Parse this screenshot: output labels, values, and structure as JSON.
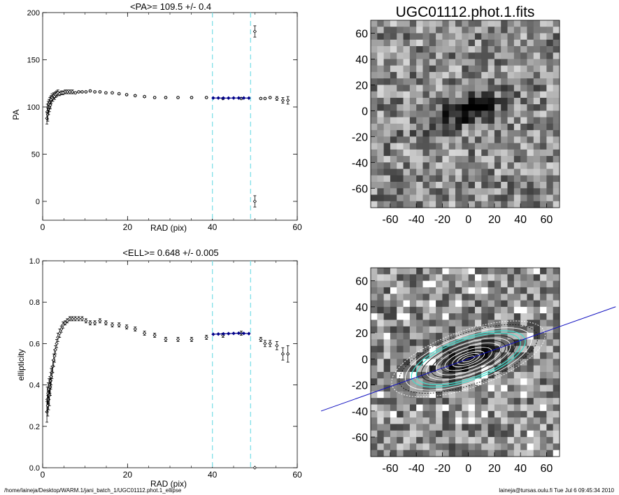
{
  "chart_data": [
    {
      "id": "pa",
      "type": "scatter",
      "title": "<PA>= 109.5 +/-   0.4",
      "xlabel": "RAD (pix)",
      "ylabel": "PA",
      "xlim": [
        0,
        60
      ],
      "ylim": [
        -20,
        200
      ],
      "xticks": [
        0,
        20,
        40,
        60
      ],
      "yticks": [
        0,
        50,
        100,
        150,
        200
      ],
      "vlines": [
        40,
        49
      ],
      "series": [
        {
          "role": "measured",
          "color": "#000000",
          "x": [
            1.0,
            1.1,
            1.2,
            1.3,
            1.4,
            1.5,
            1.6,
            1.7,
            1.8,
            1.9,
            2.0,
            2.2,
            2.4,
            2.6,
            2.8,
            3.0,
            3.3,
            3.6,
            4.0,
            4.4,
            4.8,
            5.3,
            5.8,
            6.4,
            7.0,
            7.7,
            8.5,
            9.3,
            10.2,
            11.2,
            12.3,
            13.5,
            14.9,
            16.4,
            18.0,
            19.8,
            21.8,
            24.0,
            26.4,
            29.0,
            31.9,
            35.1,
            38.6,
            42.5,
            46.8,
            51.4,
            52.4,
            53.6,
            55.2,
            56.6,
            57.8
          ],
          "y": [
            88,
            95,
            92,
            100,
            98,
            103,
            100,
            105,
            102,
            107,
            108,
            110,
            109,
            112,
            111,
            113,
            114,
            115,
            114,
            115,
            115,
            116,
            116,
            116,
            116,
            115,
            116,
            116,
            116,
            117,
            116,
            116,
            115,
            115,
            114,
            113,
            112,
            111,
            110,
            110,
            110,
            110,
            110,
            109,
            109,
            109,
            109,
            110,
            109,
            107,
            107
          ],
          "err": [
            6,
            8,
            7,
            6,
            6,
            5,
            5,
            5,
            4,
            4,
            4,
            4,
            3,
            3,
            3,
            3,
            3,
            3,
            2,
            2,
            2,
            2,
            2,
            2,
            2,
            1,
            1,
            1,
            1,
            1,
            1,
            1,
            1,
            1,
            1,
            1,
            1,
            1,
            1,
            1,
            1,
            1,
            1,
            1,
            1,
            1,
            1,
            1,
            2,
            3,
            4
          ]
        },
        {
          "role": "fit-range",
          "color": "#00008b",
          "x": [
            40.2,
            41.4,
            42.6,
            43.8,
            45.0,
            46.2,
            47.4,
            48.6
          ],
          "y": [
            109.5,
            109.5,
            109.4,
            109.4,
            109.5,
            109.5,
            109.5,
            109.4
          ]
        },
        {
          "role": "outliers",
          "color": "#000000",
          "x": [
            50.0,
            50.0
          ],
          "y": [
            180,
            0
          ],
          "err": [
            6,
            6
          ]
        }
      ]
    },
    {
      "id": "ell",
      "type": "scatter",
      "title": "<ELL>= 0.648 +/-  0.005",
      "xlabel": "RAD (pix)",
      "ylabel": "ellipticity",
      "xlim": [
        0,
        60
      ],
      "ylim": [
        0.0,
        1.0
      ],
      "xticks": [
        0,
        20,
        40,
        60
      ],
      "yticks": [
        0.0,
        0.2,
        0.4,
        0.6,
        0.8,
        1.0
      ],
      "ytick_labels": [
        "0.0",
        "0.2",
        "0.4",
        "0.6",
        "0.8",
        "1.0"
      ],
      "vlines": [
        40,
        49
      ],
      "series": [
        {
          "role": "measured",
          "color": "#000000",
          "x": [
            1.0,
            1.1,
            1.2,
            1.3,
            1.4,
            1.5,
            1.6,
            1.7,
            1.8,
            1.9,
            2.0,
            2.2,
            2.4,
            2.6,
            2.8,
            3.0,
            3.3,
            3.6,
            4.0,
            4.4,
            4.8,
            5.3,
            5.8,
            6.4,
            7.0,
            7.7,
            8.5,
            9.3,
            10.2,
            11.2,
            12.3,
            13.5,
            14.9,
            16.4,
            18.0,
            19.8,
            21.8,
            24.0,
            26.4,
            29.0,
            31.9,
            35.1,
            38.6,
            42.5,
            46.8,
            51.4,
            52.4,
            53.6,
            55.2,
            56.6,
            57.8
          ],
          "y": [
            0.27,
            0.33,
            0.3,
            0.36,
            0.33,
            0.38,
            0.35,
            0.4,
            0.39,
            0.42,
            0.44,
            0.46,
            0.49,
            0.52,
            0.54,
            0.57,
            0.6,
            0.63,
            0.65,
            0.67,
            0.69,
            0.7,
            0.71,
            0.72,
            0.72,
            0.72,
            0.72,
            0.72,
            0.71,
            0.7,
            0.7,
            0.71,
            0.7,
            0.69,
            0.69,
            0.68,
            0.67,
            0.65,
            0.64,
            0.62,
            0.62,
            0.62,
            0.63,
            0.64,
            0.65,
            0.62,
            0.6,
            0.6,
            0.59,
            0.55,
            0.55
          ],
          "err": [
            0.05,
            0.06,
            0.05,
            0.05,
            0.05,
            0.05,
            0.05,
            0.04,
            0.04,
            0.04,
            0.04,
            0.03,
            0.03,
            0.03,
            0.03,
            0.02,
            0.02,
            0.02,
            0.02,
            0.015,
            0.015,
            0.01,
            0.01,
            0.01,
            0.01,
            0.01,
            0.01,
            0.01,
            0.01,
            0.01,
            0.01,
            0.01,
            0.01,
            0.01,
            0.01,
            0.01,
            0.01,
            0.01,
            0.01,
            0.01,
            0.01,
            0.01,
            0.01,
            0.01,
            0.01,
            0.01,
            0.015,
            0.015,
            0.02,
            0.03,
            0.04
          ]
        },
        {
          "role": "fit-range",
          "color": "#00008b",
          "x": [
            40.2,
            41.4,
            42.6,
            43.8,
            45.0,
            46.2,
            47.4,
            48.6
          ],
          "y": [
            0.645,
            0.646,
            0.647,
            0.648,
            0.649,
            0.65,
            0.649,
            0.648
          ]
        },
        {
          "role": "outliers",
          "color": "#000000",
          "x": [
            50.0
          ],
          "y": [
            0.0
          ],
          "err": [
            0
          ]
        }
      ]
    },
    {
      "id": "img-top",
      "type": "heatmap",
      "title": "UGC01112.phot.1.fits",
      "xlim": [
        -75,
        70
      ],
      "ylim": [
        -75,
        70
      ],
      "xticks": [
        -60,
        -40,
        -20,
        0,
        20,
        40,
        60
      ],
      "yticks": [
        -60,
        -40,
        -20,
        0,
        20,
        40,
        60
      ],
      "colormap": "grayscale-inverted"
    },
    {
      "id": "img-bottom",
      "type": "heatmap",
      "title": "",
      "xlim": [
        -75,
        70
      ],
      "ylim": [
        -75,
        70
      ],
      "xticks": [
        -60,
        -40,
        -20,
        0,
        20,
        40,
        60
      ],
      "yticks": [
        -60,
        -40,
        -20,
        0,
        20,
        40,
        60
      ],
      "colormap": "grayscale-inverted",
      "overlay": {
        "isophote_color": "#ffffff",
        "fit_range_isophote_color": "#40e0d0",
        "major_axis_color": "#1010c0",
        "position_angle_deg": 109.5,
        "ellipticity": 0.648
      }
    }
  ],
  "footer": {
    "left": "/home/laineja/Desktop/WARM.1/jani_batch_1/UGC01112.phot.1_ellipse",
    "right": "laineja@tursas.oulu.fi  Tue Jul  6 09:45:34 2010"
  },
  "colors": {
    "vline": "#80e0e8",
    "fit": "#00008b"
  }
}
